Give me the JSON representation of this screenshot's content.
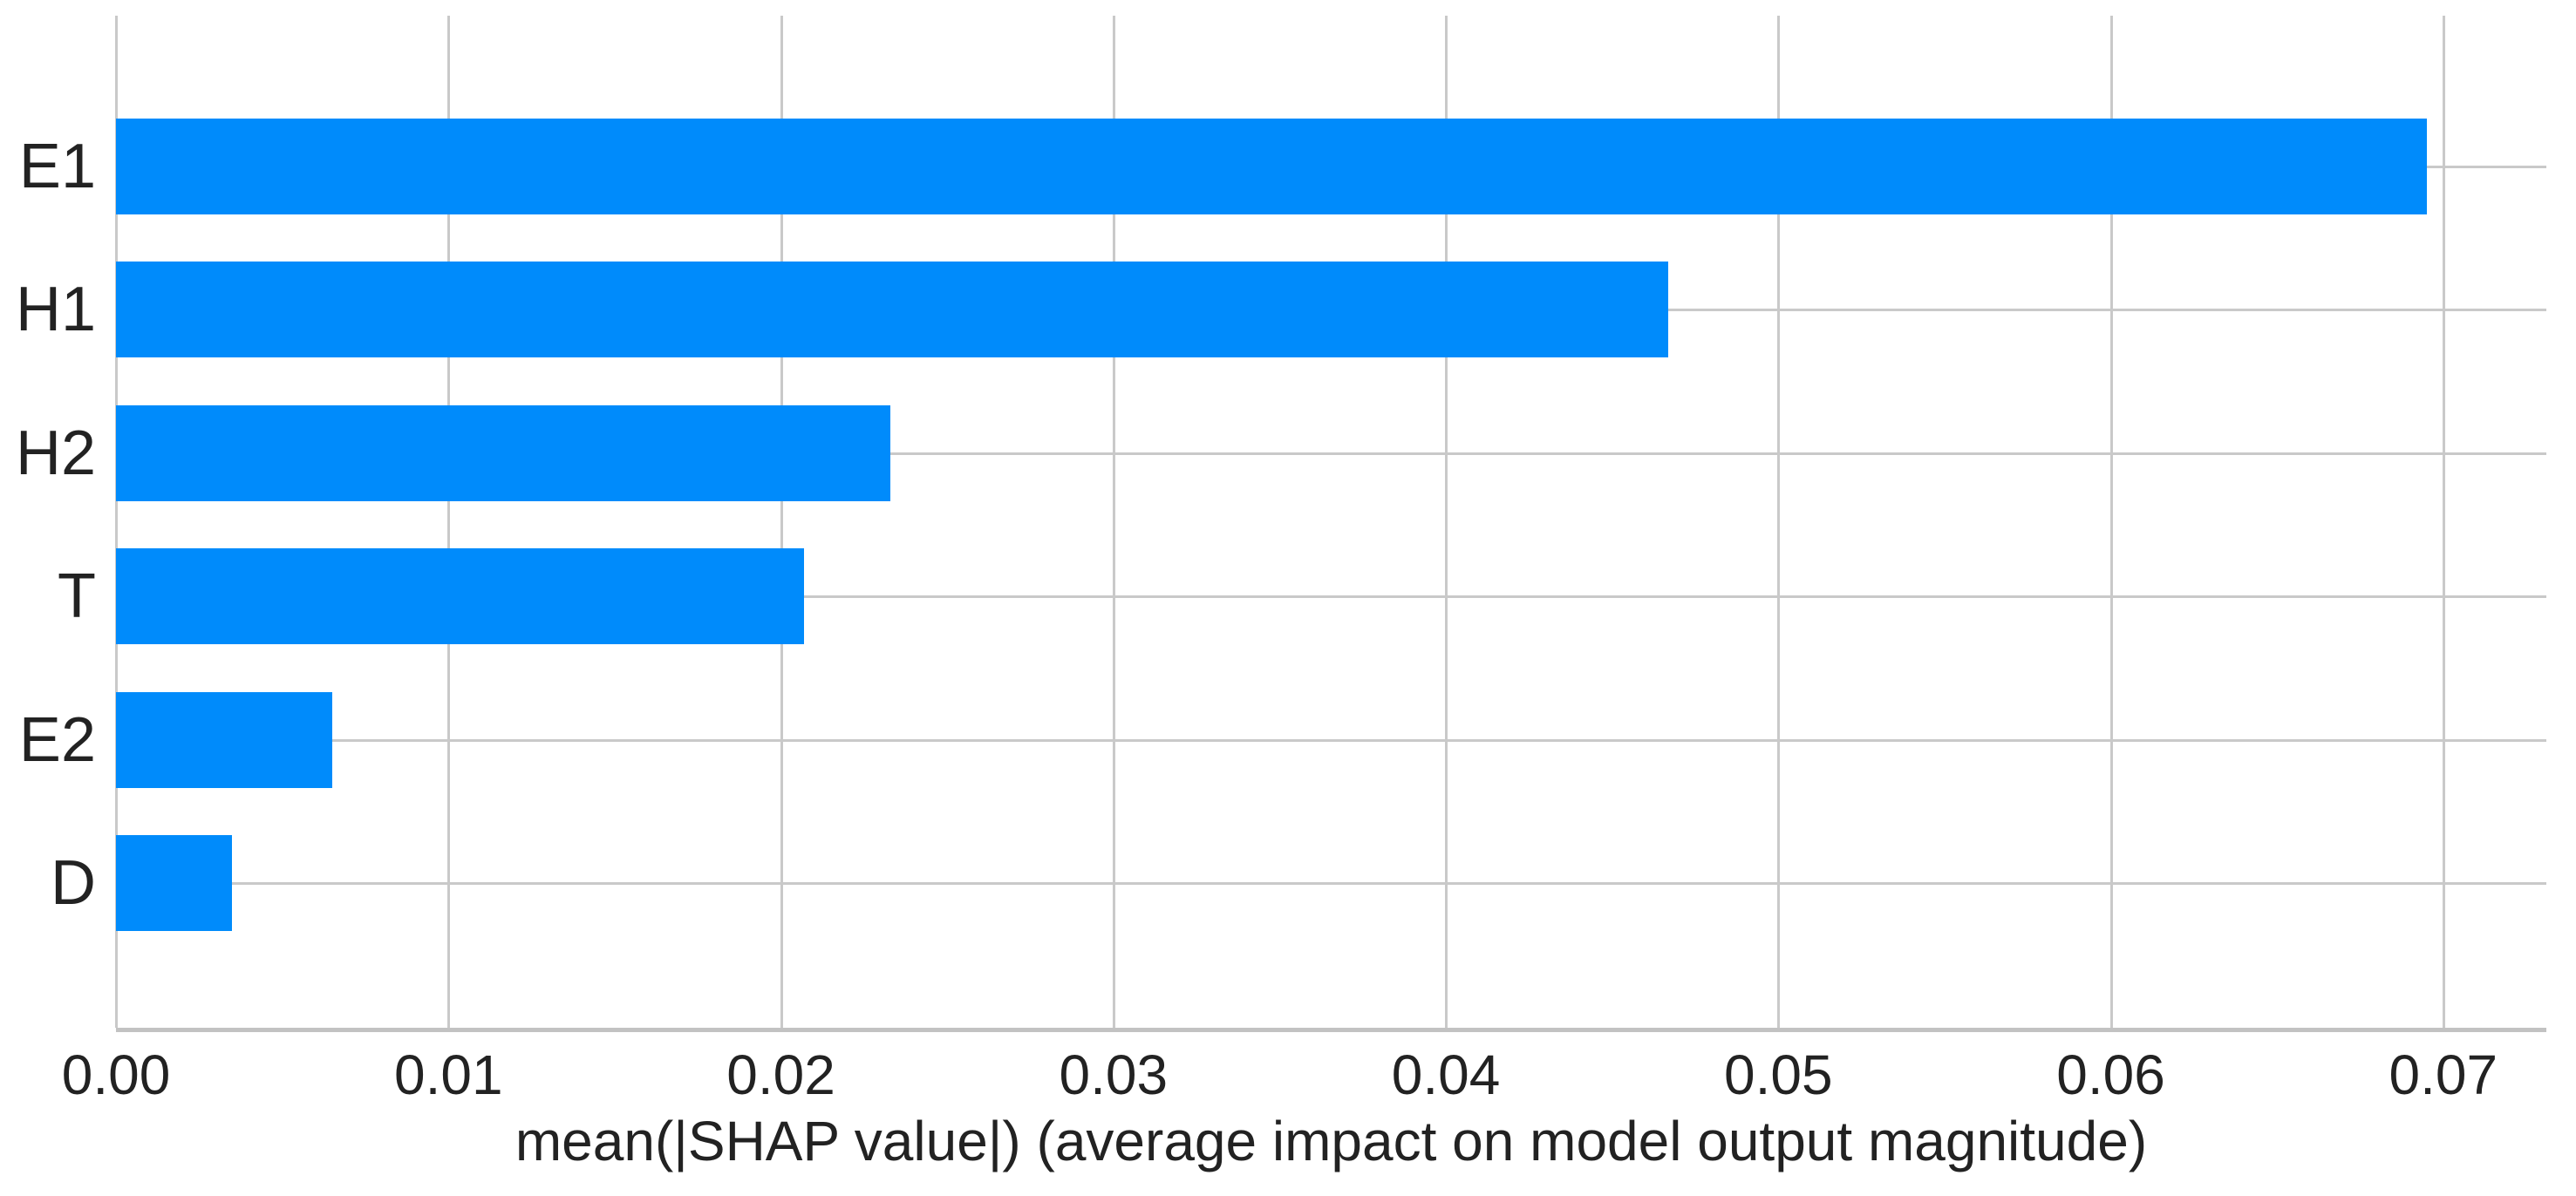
{
  "chart_data": {
    "type": "bar",
    "orientation": "horizontal",
    "title": "",
    "xlabel": "mean(|SHAP value|) (average impact on model output magnitude)",
    "ylabel": "",
    "categories": [
      "E1",
      "H1",
      "H2",
      "T",
      "E2",
      "D"
    ],
    "values": [
      0.0695,
      0.0467,
      0.0233,
      0.0207,
      0.0065,
      0.0035
    ],
    "xlim": [
      0,
      0.0731
    ],
    "xticks": [
      0,
      0.01,
      0.02,
      0.03,
      0.04,
      0.05,
      0.06,
      0.07
    ],
    "xtick_labels": [
      "0.00",
      "0.01",
      "0.02",
      "0.03",
      "0.04",
      "0.05",
      "0.06",
      "0.07"
    ],
    "grid": true,
    "legend_position": "none",
    "colors": {
      "bar": "#008bfb",
      "grid": "#c9c9c9",
      "axis_line": "#c2c2c2",
      "text": "#222222",
      "background": "#ffffff"
    }
  }
}
